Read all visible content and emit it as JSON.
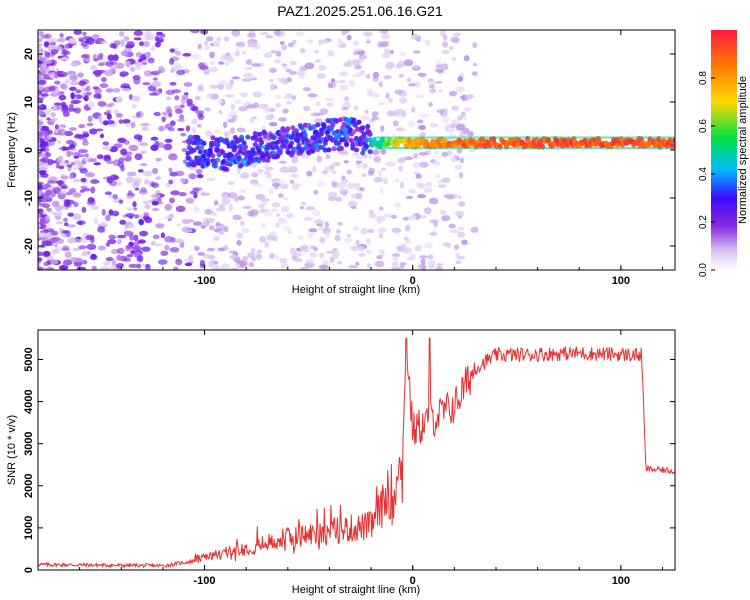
{
  "title": "PAZ1.2025.251.06.16.G21",
  "chart_data": [
    {
      "type": "heatmap",
      "xlabel": "Height of straight line (km)",
      "ylabel": "Frequency (Hz)",
      "xlim": [
        -180,
        126
      ],
      "ylim": [
        -25,
        25
      ],
      "xticks": [
        -100,
        0,
        100
      ],
      "yticks": [
        -20,
        -10,
        0,
        10,
        20
      ],
      "colorbar": {
        "label": "Normalized spectral amplitude",
        "range": [
          0.0,
          1.0
        ],
        "ticks": [
          0.0,
          0.2,
          0.4,
          0.6,
          0.8
        ],
        "colors": [
          "#ffffff",
          "#d9c2f2",
          "#8a2be2",
          "#3a0aff",
          "#00bfff",
          "#00e040",
          "#ffd700",
          "#ff7a00",
          "#ff1a40"
        ]
      },
      "ridge": {
        "description_points": [
          {
            "x": -105,
            "f": 0.0,
            "amp": 0.3
          },
          {
            "x": -90,
            "f": -1.0,
            "amp": 0.3
          },
          {
            "x": -75,
            "f": 0.5,
            "amp": 0.3
          },
          {
            "x": -60,
            "f": 1.5,
            "amp": 0.3
          },
          {
            "x": -45,
            "f": 3.0,
            "amp": 0.3
          },
          {
            "x": -30,
            "f": 3.5,
            "amp": 0.3
          },
          {
            "x": -20,
            "f": 1.5,
            "amp": 0.5
          },
          {
            "x": 0,
            "f": 1.5,
            "amp": 0.9
          },
          {
            "x": 50,
            "f": 1.5,
            "amp": 1.0
          },
          {
            "x": 126,
            "f": 1.5,
            "amp": 1.0
          }
        ]
      }
    },
    {
      "type": "line",
      "xlabel": "Height of straight line (km)",
      "ylabel": "SNR (10 * v/v)",
      "xlim": [
        -180,
        126
      ],
      "ylim": [
        0,
        5700
      ],
      "xticks": [
        -100,
        0,
        100
      ],
      "yticks": [
        0,
        1000,
        2000,
        3000,
        4000,
        5000
      ],
      "color": "#e83030",
      "series_anchors": [
        {
          "x": -180,
          "y": 130
        },
        {
          "x": -120,
          "y": 100
        },
        {
          "x": -100,
          "y": 250
        },
        {
          "x": -80,
          "y": 450
        },
        {
          "x": -60,
          "y": 650
        },
        {
          "x": -40,
          "y": 800
        },
        {
          "x": -20,
          "y": 900
        },
        {
          "x": -8,
          "y": 1800
        },
        {
          "x": -5,
          "y": 2400
        },
        {
          "x": -3,
          "y": 5400
        },
        {
          "x": 0,
          "y": 3300
        },
        {
          "x": 10,
          "y": 3600
        },
        {
          "x": 20,
          "y": 3900
        },
        {
          "x": 30,
          "y": 4800
        },
        {
          "x": 40,
          "y": 5100
        },
        {
          "x": 80,
          "y": 5150
        },
        {
          "x": 110,
          "y": 5100
        },
        {
          "x": 112,
          "y": 2400
        },
        {
          "x": 126,
          "y": 2350
        }
      ]
    }
  ]
}
